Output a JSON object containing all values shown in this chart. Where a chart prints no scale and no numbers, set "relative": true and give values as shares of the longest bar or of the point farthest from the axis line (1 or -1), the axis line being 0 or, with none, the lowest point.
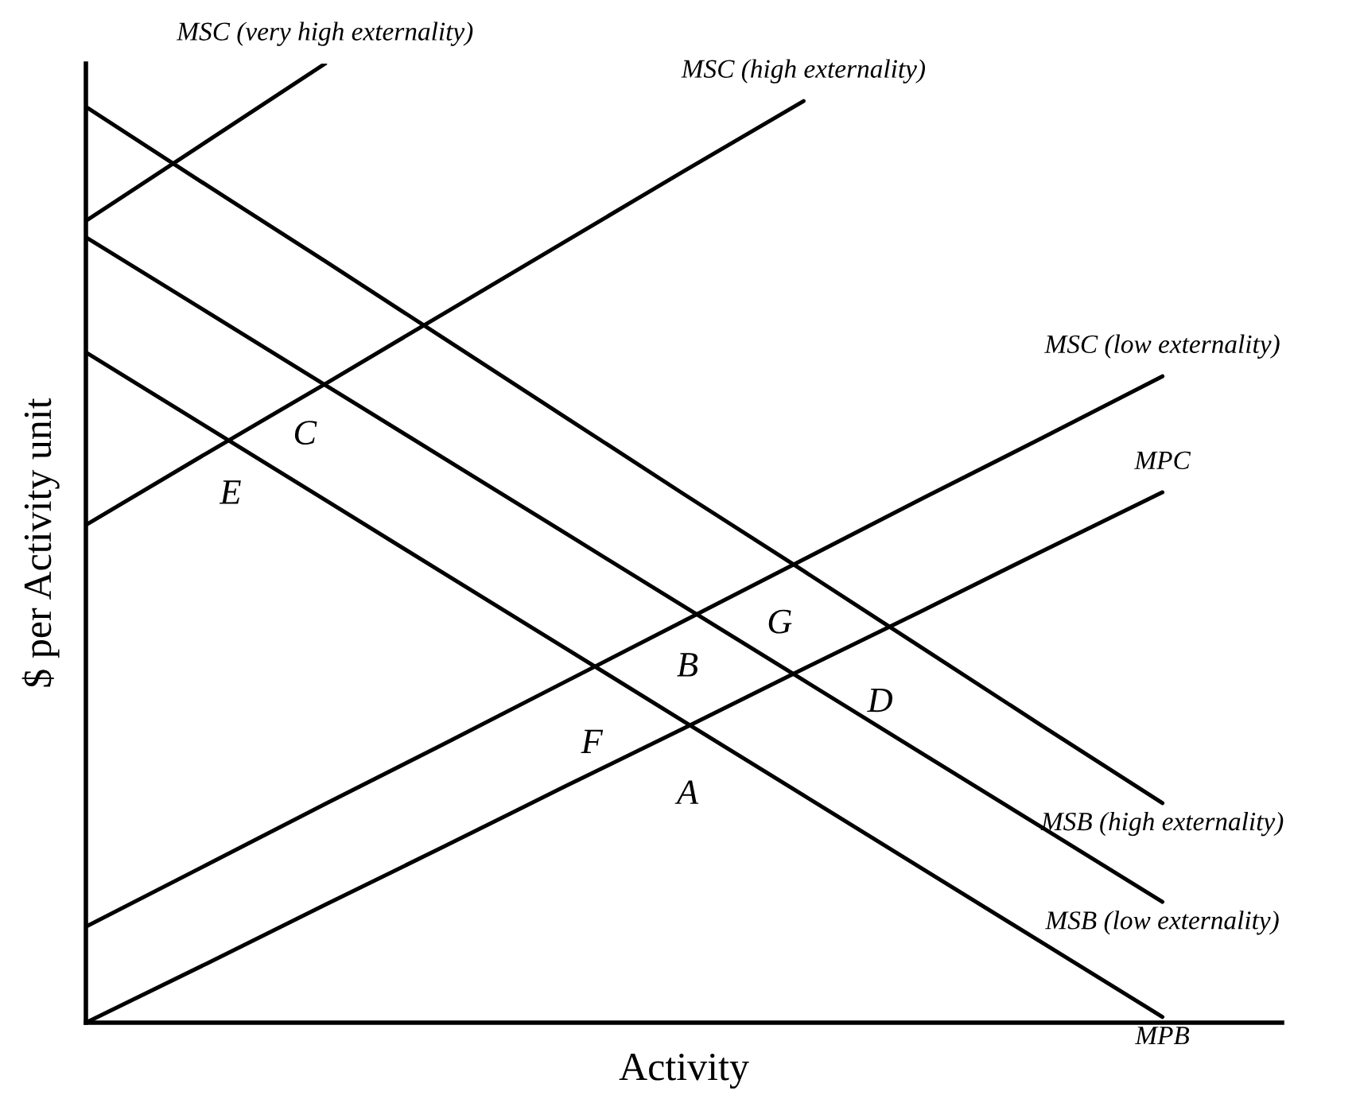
{
  "chart_data": {
    "type": "line",
    "relative": true,
    "xlabel": "Activity",
    "ylabel": "$ per Activity unit",
    "legend": false,
    "marker": "none",
    "line_style": "solid",
    "categories": [
      null,
      null,
      null,
      null,
      null,
      null,
      null,
      null,
      null,
      null,
      null
    ],
    "series": [
      {
        "name": "MSC (very high externality)",
        "color": "#000000",
        "values": [
          0.836,
          0.918,
          1.0,
          null,
          null,
          null,
          null,
          null,
          null,
          null,
          null
        ]
      },
      {
        "name": "MSC (high externality)",
        "color": "#000000",
        "values": [
          0.519,
          0.593,
          0.666,
          0.74,
          0.814,
          0.888,
          0.961,
          null,
          null,
          null,
          null
        ]
      },
      {
        "name": "MSC (low externality)",
        "color": "#000000",
        "values": [
          0.1,
          0.164,
          0.228,
          0.291,
          0.355,
          0.419,
          0.483,
          0.547,
          0.61,
          0.674,
          null
        ]
      },
      {
        "name": "MPC",
        "color": "#000000",
        "values": [
          0,
          0.061,
          0.123,
          0.184,
          0.246,
          0.307,
          0.369,
          0.43,
          0.492,
          0.553,
          null
        ]
      },
      {
        "name": "MSB (high externality)",
        "color": "#000000",
        "values": [
          0.955,
          0.874,
          0.794,
          0.713,
          0.632,
          0.551,
          0.471,
          0.39,
          0.309,
          0.229,
          null
        ]
      },
      {
        "name": "MSB (low externality)",
        "color": "#000000",
        "values": [
          0.819,
          0.742,
          0.665,
          0.588,
          0.511,
          0.434,
          0.357,
          0.28,
          0.203,
          0.126,
          null
        ]
      },
      {
        "name": "MPB",
        "color": "#000000",
        "values": [
          0.699,
          0.622,
          0.545,
          0.468,
          0.391,
          0.314,
          0.237,
          0.16,
          0.083,
          0.006,
          null
        ]
      }
    ],
    "annotations": [
      "C",
      "E",
      "B",
      "G",
      "F",
      "D",
      "A"
    ]
  }
}
